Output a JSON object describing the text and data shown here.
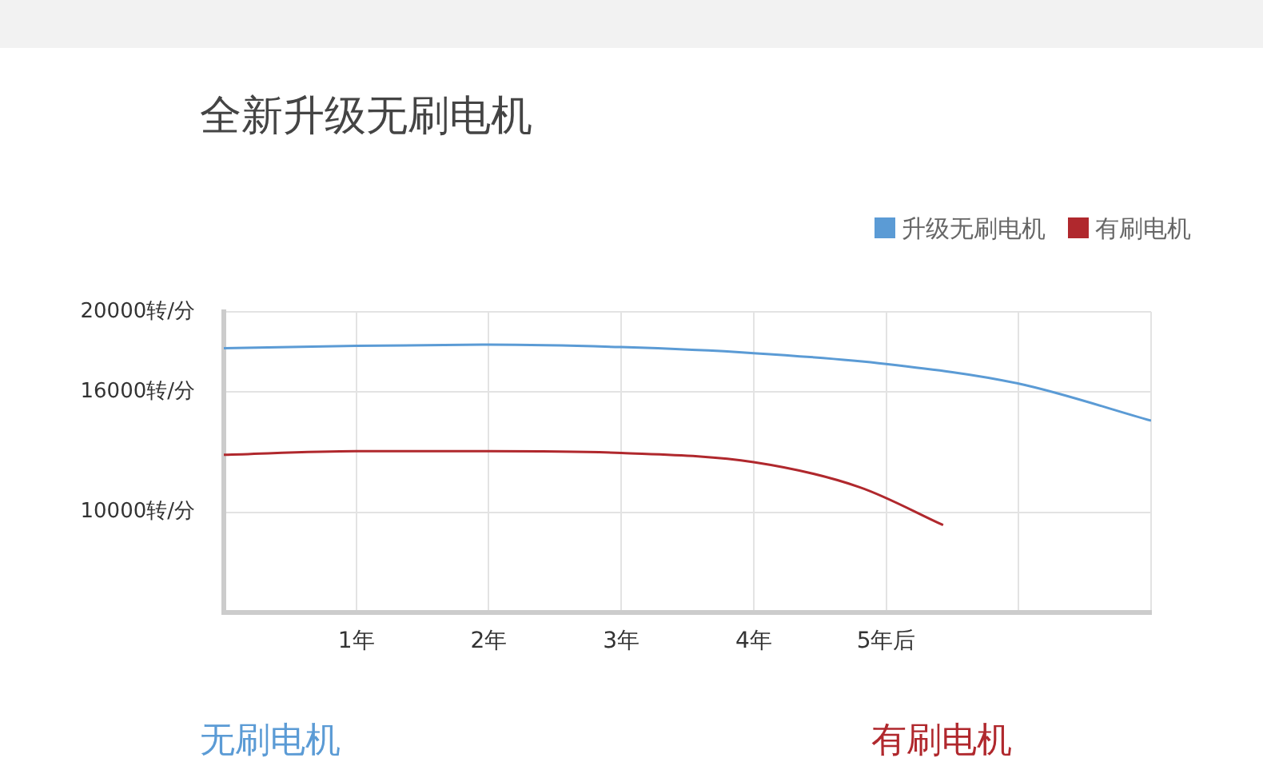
{
  "chart_data": {
    "type": "line",
    "title": "全新升级无刷电机",
    "x": [
      0,
      1,
      2,
      3,
      4,
      5,
      6,
      7
    ],
    "series": [
      {
        "name": "升级无刷电机",
        "color": "#5b9bd5",
        "values": [
          18180,
          18300,
          18360,
          18240,
          17940,
          17400,
          16420,
          14570
        ]
      },
      {
        "name": "有刷电机",
        "color": "#b0282d",
        "x": [
          0,
          1,
          2,
          3,
          4,
          4.8,
          5.43
        ],
        "values": [
          12870,
          13050,
          13050,
          12960,
          12500,
          11250,
          9360
        ]
      }
    ],
    "xlim": [
      0,
      7
    ],
    "xticks": [
      {
        "value": 1,
        "label": "1年"
      },
      {
        "value": 2,
        "label": "2年"
      },
      {
        "value": 3,
        "label": "3年"
      },
      {
        "value": 4,
        "label": "4年"
      },
      {
        "value": 5,
        "label": "5年后"
      },
      {
        "value": 6,
        "label": null
      },
      {
        "value": 7,
        "label": null
      }
    ],
    "ylim": [
      5000,
      20000
    ],
    "yticks": [
      {
        "value": 10000,
        "label": "10000转/分"
      },
      {
        "value": 16000,
        "label": "16000转/分"
      },
      {
        "value": 20000,
        "label": "20000转/分"
      }
    ],
    "grid": true,
    "legend": "top right",
    "marker": "none",
    "line_style": "solid",
    "annotations": [
      "无刷电机",
      "有刷电机"
    ]
  }
}
